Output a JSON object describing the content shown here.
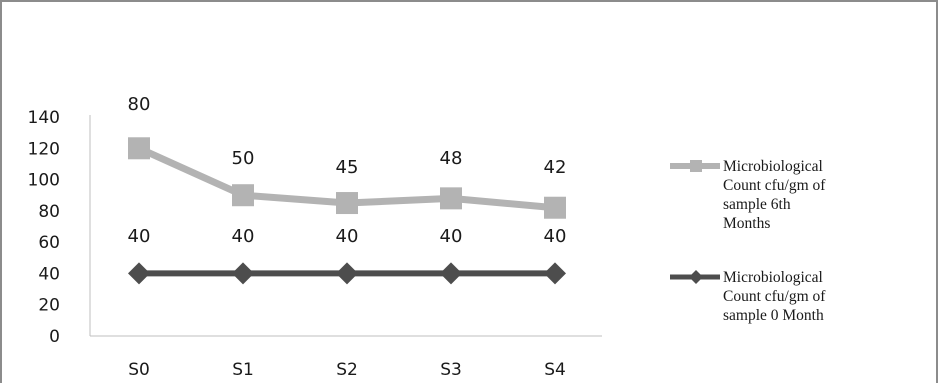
{
  "chart_data": {
    "type": "line",
    "categories": [
      "S0",
      "S1",
      "S2",
      "S3",
      "S4"
    ],
    "yticks": [
      "0",
      "20",
      "40",
      "60",
      "80",
      "100",
      "120",
      "140"
    ],
    "ylim": [
      0,
      140
    ],
    "grid": false,
    "legend_position": "right",
    "series": [
      {
        "name": "Microbiological Count cfu/gm of sample  6th Months",
        "legend_lines": [
          "Microbiological",
          "Count cfu/gm of",
          "sample  6th",
          "Months"
        ],
        "values": [
          120,
          90,
          85,
          88,
          82
        ],
        "data_labels": [
          "80",
          "50",
          "45",
          "48",
          "42"
        ],
        "marker": "square",
        "color": "#b3b3b3"
      },
      {
        "name": "Microbiological Count cfu/gm of sample  0 Month",
        "legend_lines": [
          "Microbiological",
          "Count cfu/gm of",
          "sample  0 Month"
        ],
        "values": [
          40,
          40,
          40,
          40,
          40
        ],
        "data_labels": [
          "40",
          "40",
          "40",
          "40",
          "40"
        ],
        "marker": "diamond",
        "color": "#4d4d4d"
      }
    ]
  }
}
